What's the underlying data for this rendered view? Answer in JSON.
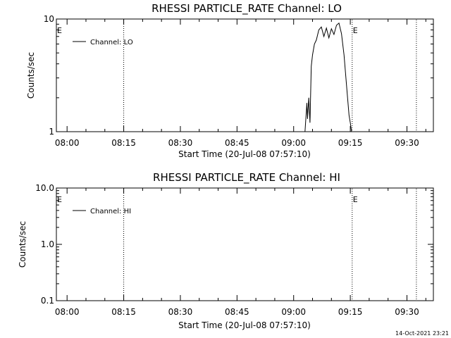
{
  "chart_data": [
    {
      "type": "line",
      "title": "RHESSI PARTICLE_RATE Channel: LO",
      "xlabel": "Start Time (20-Jul-08 07:57:10)",
      "ylabel": "Counts/sec",
      "x_tick_labels": [
        "08:00",
        "08:15",
        "08:30",
        "08:45",
        "09:00",
        "09:15",
        "09:30"
      ],
      "y_tick_labels": [
        "1",
        "10"
      ],
      "y_scale": "log",
      "ylim": [
        1,
        10
      ],
      "xlim": [
        "07:57:10",
        "09:37:00"
      ],
      "grid": false,
      "legend_position": "top-left",
      "series": [
        {
          "name": "Channel: LO",
          "x": [
            "09:03:00",
            "09:03:30",
            "09:03:40",
            "09:04:00",
            "09:04:20",
            "09:04:40",
            "09:05:00",
            "09:05:30",
            "09:06:00",
            "09:06:40",
            "09:07:20",
            "09:08:00",
            "09:08:40",
            "09:09:20",
            "09:10:00",
            "09:10:40",
            "09:11:20",
            "09:12:00",
            "09:12:40",
            "09:13:20",
            "09:14:00",
            "09:14:40",
            "09:15:00",
            "09:15:20"
          ],
          "y": [
            1.0,
            1.8,
            1.3,
            2.0,
            1.2,
            3.8,
            4.8,
            6.0,
            6.5,
            8.0,
            8.5,
            7.0,
            8.3,
            6.8,
            8.2,
            7.3,
            8.8,
            9.2,
            7.4,
            4.8,
            2.6,
            1.4,
            1.2,
            1.0
          ]
        }
      ],
      "vertical_markers": [
        "08:15:00",
        "09:15:30",
        "09:32:30"
      ],
      "edge_markers": [
        {
          "label": "E",
          "at": "07:57:10"
        },
        {
          "label": "E",
          "at": "09:15:30"
        }
      ]
    },
    {
      "type": "line",
      "title": "RHESSI PARTICLE_RATE Channel: HI",
      "xlabel": "Start Time (20-Jul-08 07:57:10)",
      "ylabel": "Counts/sec",
      "x_tick_labels": [
        "08:00",
        "08:15",
        "08:30",
        "08:45",
        "09:00",
        "09:15",
        "09:30"
      ],
      "y_tick_labels": [
        "0.1",
        "1.0",
        "10.0"
      ],
      "y_scale": "log",
      "ylim": [
        0.1,
        10
      ],
      "xlim": [
        "07:57:10",
        "09:37:00"
      ],
      "grid": false,
      "legend_position": "top-left",
      "series": [
        {
          "name": "Channel: HI",
          "x": [],
          "y": []
        }
      ],
      "vertical_markers": [
        "08:15:00",
        "09:15:30",
        "09:32:30"
      ],
      "edge_markers": [
        {
          "label": "E",
          "at": "07:57:10"
        },
        {
          "label": "E",
          "at": "09:15:30"
        }
      ]
    }
  ],
  "footer": {
    "timestamp": "14-Oct-2021 23:21"
  },
  "colors": {
    "background": "#ffffff",
    "foreground": "#000000"
  }
}
